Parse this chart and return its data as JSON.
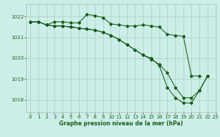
{
  "title": "Graphe pression niveau de la mer (hPa)",
  "background_color": "#cceee8",
  "grid_color": "#aaccbb",
  "line_color": "#1a5c1a",
  "xlim": [
    -0.5,
    23
  ],
  "ylim": [
    1017.4,
    1022.6
  ],
  "yticks": [
    1018,
    1019,
    1020,
    1021,
    1022
  ],
  "xticks": [
    0,
    1,
    2,
    3,
    4,
    5,
    6,
    7,
    8,
    9,
    10,
    11,
    12,
    13,
    14,
    15,
    16,
    17,
    18,
    19,
    20,
    21,
    22,
    23
  ],
  "s1_x": [
    0,
    1,
    2,
    3,
    4,
    5,
    6,
    7,
    8,
    9,
    10,
    11,
    12,
    13,
    14,
    15,
    16,
    17,
    18,
    19,
    20,
    21,
    22
  ],
  "s1_y": [
    1021.75,
    1021.75,
    1021.6,
    1021.75,
    1021.75,
    1021.7,
    1021.7,
    1022.1,
    1022.05,
    1021.95,
    1021.65,
    1021.6,
    1021.55,
    1021.55,
    1021.6,
    1021.55,
    1021.5,
    1021.15,
    1021.1,
    1021.05,
    1019.15,
    1019.15,
    null
  ],
  "s2_x": [
    0,
    1,
    2,
    3,
    4,
    5,
    6,
    7,
    8,
    9,
    10,
    11,
    12,
    13,
    14,
    15,
    16,
    17,
    18,
    19,
    20,
    21,
    22
  ],
  "s2_y": [
    1021.75,
    1021.75,
    1021.6,
    1021.55,
    1021.55,
    1021.5,
    1021.45,
    1021.4,
    1021.35,
    1021.25,
    1021.1,
    1020.9,
    1020.65,
    1020.4,
    1020.15,
    1019.95,
    1019.7,
    1019.3,
    1018.6,
    1018.1,
    1018.1,
    1018.45,
    1019.15
  ],
  "s3_x": [
    0,
    1,
    2,
    3,
    4,
    5,
    6,
    7,
    8,
    9,
    10,
    11,
    12,
    13,
    14,
    15,
    16,
    17,
    18,
    19,
    20,
    21,
    22
  ],
  "s3_y": [
    1021.75,
    1021.75,
    1021.6,
    1021.55,
    1021.55,
    1021.5,
    1021.45,
    1021.4,
    1021.35,
    1021.25,
    1021.1,
    1020.9,
    1020.65,
    1020.4,
    1020.15,
    1020.0,
    1019.65,
    1018.6,
    1018.1,
    1017.85,
    1017.85,
    1018.45,
    1019.15
  ]
}
